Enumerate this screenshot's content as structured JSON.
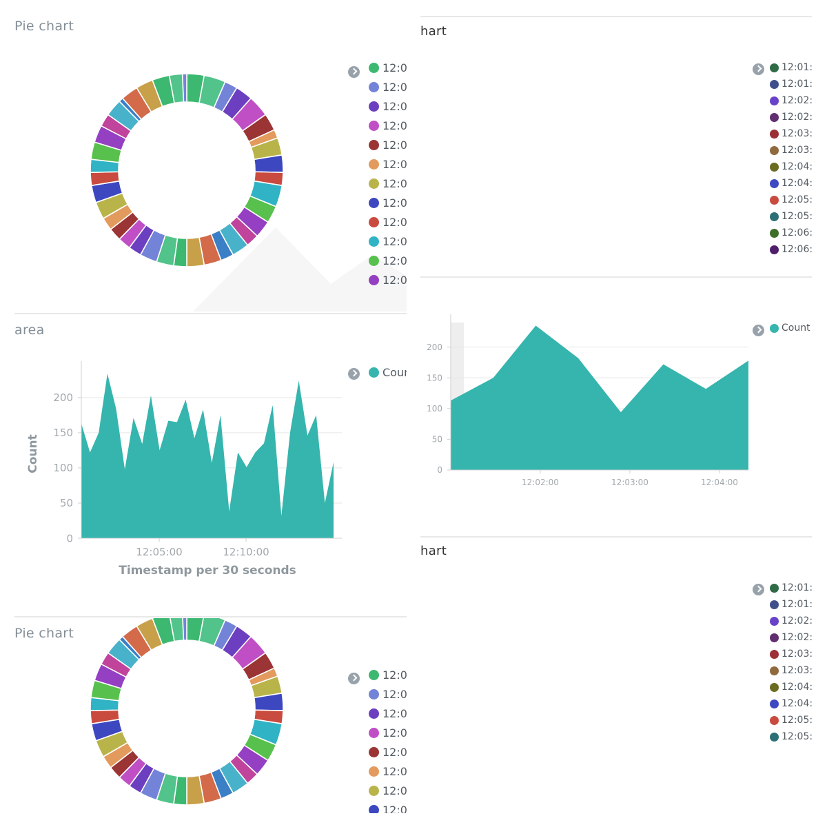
{
  "colors": {
    "area_fill": "#35b5ad",
    "grid": "#e6e6e6",
    "axis": "#cfcfcf",
    "tick_text": "#a2a9ae",
    "pie_palette": [
      "#3db870",
      "#52c38a",
      "#7384d8",
      "#6b3fbf",
      "#c04fc6",
      "#9b3434",
      "#e39a5d",
      "#b9b44a",
      "#3d48c0",
      "#c94b3f",
      "#30b3c4",
      "#58c04c",
      "#9540c3",
      "#c0449b",
      "#47b2c9",
      "#3b7fc6",
      "#d36a4a",
      "#c8a049"
    ]
  },
  "panels": {
    "pie1": {
      "title": "Pie chart",
      "legend": [
        "12:0",
        "12:0",
        "12:0",
        "12:0",
        "12:0",
        "12:0",
        "12:0",
        "12:0",
        "12:0",
        "12:0",
        "12:0",
        "12:0"
      ],
      "legend_colors": [
        "#3db870",
        "#7384d8",
        "#6b3fbf",
        "#c04fc6",
        "#9b3434",
        "#e39a5d",
        "#b9b44a",
        "#3d48c0",
        "#c94b3f",
        "#30b3c4",
        "#58c04c",
        "#9540c3"
      ]
    },
    "chart_tr": {
      "title": "hart",
      "legend": [
        "12:01:",
        "12:01:",
        "12:02:",
        "12:02:",
        "12:03:",
        "12:03:",
        "12:04:",
        "12:04:",
        "12:05:",
        "12:05:",
        "12:06:",
        "12:06:"
      ],
      "legend_colors": [
        "#2f6b47",
        "#3f4f8c",
        "#6843c9",
        "#612f6e",
        "#9c3036",
        "#8e6a3e",
        "#6b6b22",
        "#3c49c2",
        "#c94b3f",
        "#2d6f76",
        "#3f6e28",
        "#4f1f6b"
      ]
    },
    "area": {
      "title": "area",
      "legend": [
        "Cour"
      ]
    },
    "area2": {
      "legend": [
        "Count"
      ]
    },
    "chart_br": {
      "title": "hart",
      "legend": [
        "12:01:",
        "12:01:",
        "12:02:",
        "12:02:",
        "12:03:",
        "12:03:",
        "12:04:",
        "12:04:",
        "12:05:",
        "12:05:"
      ],
      "legend_colors": [
        "#2f6b47",
        "#3f4f8c",
        "#6843c9",
        "#612f6e",
        "#9c3036",
        "#8e6a3e",
        "#6b6b22",
        "#3c49c2",
        "#c94b3f",
        "#2d6f76"
      ]
    },
    "pie2": {
      "title": "Pie chart",
      "legend": [
        "12:0",
        "12:0",
        "12:0",
        "12:0",
        "12:0",
        "12:0",
        "12:0",
        "12:0"
      ],
      "legend_colors": [
        "#3db870",
        "#7384d8",
        "#6b3fbf",
        "#c04fc6",
        "#9b3434",
        "#e39a5d",
        "#b9b44a",
        "#3d48c0"
      ]
    }
  },
  "chart_data": [
    {
      "type": "pie",
      "title": "Pie chart",
      "donut": true,
      "values": [
        4,
        5,
        3,
        4,
        5,
        4,
        2,
        4,
        4,
        3,
        5,
        4,
        4,
        3,
        4,
        3,
        4,
        4,
        3,
        4,
        4,
        3,
        3,
        3,
        3,
        4,
        4,
        3,
        3,
        4,
        4,
        3,
        4,
        1,
        4,
        4,
        4,
        3,
        1
      ]
    },
    {
      "type": "area",
      "title": "area",
      "xlabel": "Timestamp per 30 seconds",
      "ylabel": "Count",
      "ylim": [
        0,
        240
      ],
      "yticks": [
        0,
        50,
        100,
        150,
        200
      ],
      "xticks": [
        "12:05:00",
        "12:10:00"
      ],
      "series": [
        {
          "name": "Count",
          "values": [
            163,
            122,
            150,
            234,
            184,
            98,
            171,
            134,
            203,
            125,
            167,
            165,
            197,
            142,
            183,
            107,
            175,
            38,
            122,
            101,
            122,
            135,
            189,
            32,
            150,
            224,
            146,
            175,
            50,
            108
          ]
        }
      ]
    },
    {
      "type": "area",
      "ylim": [
        0,
        240
      ],
      "yticks": [
        0,
        50,
        100,
        150,
        200
      ],
      "xticks": [
        "12:02:00",
        "12:03:00",
        "12:04:00"
      ],
      "series": [
        {
          "name": "Count",
          "values": [
            113,
            150,
            235,
            182,
            94,
            172,
            132,
            178
          ]
        }
      ]
    },
    {
      "type": "pie",
      "title": "Pie chart",
      "donut": true,
      "values": [
        4,
        5,
        3,
        4,
        5,
        4,
        2,
        4,
        4,
        3,
        5,
        4,
        4,
        3,
        4,
        3,
        4,
        4,
        3,
        4,
        4,
        3,
        3,
        3,
        3,
        4,
        4,
        3,
        3,
        4,
        4,
        3,
        4,
        1,
        4,
        4,
        4,
        3,
        1
      ]
    }
  ]
}
